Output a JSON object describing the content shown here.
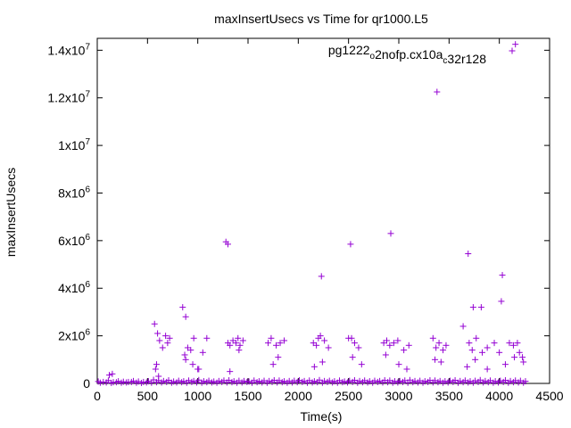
{
  "chart_data": {
    "type": "scatter",
    "title": "maxInsertUsecs vs Time for qr1000.L5",
    "xlabel": "Time(s)",
    "ylabel": "maxInsertUsecs",
    "xlim": [
      0,
      4500
    ],
    "ylim": [
      0,
      14500000
    ],
    "x_ticks": [
      0,
      500,
      1000,
      1500,
      2000,
      2500,
      3000,
      3500,
      4000,
      4500
    ],
    "x_tick_labels": [
      "0",
      "500",
      "1000",
      "1500",
      "2000",
      "2500",
      "3000",
      "3500",
      "4000",
      "4500"
    ],
    "y_ticks": [
      0,
      2000000,
      4000000,
      6000000,
      8000000,
      10000000,
      12000000,
      14000000
    ],
    "y_tick_labels": [
      {
        "base": "0",
        "exp": ""
      },
      {
        "base": "2x10",
        "exp": "6"
      },
      {
        "base": "4x10",
        "exp": "6"
      },
      {
        "base": "6x10",
        "exp": "6"
      },
      {
        "base": "8x10",
        "exp": "6"
      },
      {
        "base": "1x10",
        "exp": "7"
      },
      {
        "base": "1.2x10",
        "exp": "7"
      },
      {
        "base": "1.4x10",
        "exp": "7"
      }
    ],
    "grid": false,
    "legend_position": "top-right",
    "series": [
      {
        "name": "pg1222_o2nofp.cx10a_c32r128",
        "legend_parts": [
          {
            "text": "pg1222",
            "sub": false
          },
          {
            "text": "o",
            "sub": true
          },
          {
            "text": "2nofp.cx10a",
            "sub": false
          },
          {
            "text": "c",
            "sub": true
          },
          {
            "text": "32r128",
            "sub": false
          }
        ],
        "color": "#9400d3",
        "marker": "plus",
        "x": [
          10,
          60,
          110,
          160,
          210,
          260,
          310,
          360,
          410,
          460,
          510,
          560,
          610,
          660,
          710,
          760,
          810,
          860,
          910,
          960,
          1010,
          1060,
          1110,
          1160,
          1210,
          1260,
          1310,
          1360,
          1410,
          1460,
          1510,
          1560,
          1610,
          1660,
          1710,
          1760,
          1810,
          1860,
          1910,
          1960,
          2010,
          2060,
          2110,
          2160,
          2210,
          2260,
          2310,
          2360,
          2410,
          2460,
          2510,
          2560,
          2610,
          2660,
          2710,
          2760,
          2810,
          2860,
          2910,
          2960,
          3010,
          3060,
          3110,
          3160,
          3210,
          3260,
          3310,
          3360,
          3410,
          3460,
          3510,
          3560,
          3610,
          3660,
          3710,
          3760,
          3810,
          3860,
          3910,
          3960,
          4010,
          4060,
          4110,
          4160,
          4210,
          4260,
          30,
          90,
          140,
          190,
          240,
          290,
          340,
          390,
          440,
          490,
          540,
          590,
          640,
          690,
          740,
          790,
          840,
          890,
          940,
          990,
          1040,
          1090,
          1140,
          1190,
          1240,
          1290,
          1340,
          1390,
          1440,
          1490,
          1540,
          1590,
          1640,
          1690,
          1740,
          1790,
          1840,
          1890,
          1940,
          1990,
          2040,
          2090,
          2140,
          2190,
          2240,
          2290,
          2340,
          2390,
          2440,
          2490,
          2540,
          2590,
          2640,
          2690,
          2740,
          2790,
          2840,
          2890,
          2940,
          2990,
          3040,
          3090,
          3140,
          3190,
          3240,
          3290,
          3340,
          3390,
          3440,
          3490,
          3540,
          3590,
          3640,
          3690,
          3740,
          3790,
          3840,
          3890,
          3940,
          3990,
          4040,
          4090,
          4140,
          4190,
          4240,
          120,
          150,
          580,
          600,
          620,
          650,
          680,
          700,
          720,
          870,
          900,
          930,
          960,
          1000,
          1050,
          1090,
          1300,
          1320,
          1350,
          1380,
          1400,
          1420,
          1450,
          1700,
          1730,
          1780,
          1820,
          1860,
          2150,
          2180,
          2200,
          2220,
          2260,
          2300,
          2500,
          2530,
          2560,
          2600,
          2850,
          2880,
          2910,
          2950,
          2990,
          3050,
          3100,
          3340,
          3370,
          3400,
          3440,
          3470,
          3640,
          3700,
          3730,
          3770,
          3830,
          3880,
          3950,
          4000,
          4100,
          4140,
          4180,
          4200,
          4230,
          590,
          610,
          880,
          950,
          1010,
          1320,
          1410,
          1750,
          1800,
          2160,
          2240,
          2540,
          2630,
          2870,
          3000,
          3080,
          3360,
          3420,
          3680,
          3760,
          3880,
          4060,
          4150,
          4240,
          570,
          850,
          880,
          1280,
          1300,
          2230,
          2520,
          2920,
          3380,
          3690,
          3740,
          3820,
          4020,
          4030,
          4160
        ],
        "y": [
          80000,
          60000,
          120000,
          50000,
          90000,
          70000,
          60000,
          100000,
          80000,
          60000,
          90000,
          150000,
          120000,
          100000,
          130000,
          80000,
          110000,
          90000,
          120000,
          100000,
          140000,
          90000,
          110000,
          80000,
          100000,
          120000,
          130000,
          90000,
          110000,
          100000,
          80000,
          120000,
          90000,
          110000,
          100000,
          130000,
          120000,
          90000,
          100000,
          110000,
          130000,
          100000,
          120000,
          90000,
          140000,
          100000,
          110000,
          90000,
          120000,
          80000,
          110000,
          130000,
          100000,
          120000,
          90000,
          110000,
          100000,
          130000,
          120000,
          90000,
          100000,
          120000,
          140000,
          100000,
          110000,
          90000,
          130000,
          120000,
          100000,
          90000,
          110000,
          130000,
          100000,
          120000,
          90000,
          110000,
          140000,
          100000,
          120000,
          90000,
          110000,
          130000,
          100000,
          120000,
          110000,
          90000,
          30000,
          40000,
          20000,
          50000,
          30000,
          40000,
          60000,
          30000,
          20000,
          40000,
          30000,
          50000,
          40000,
          60000,
          30000,
          40000,
          50000,
          30000,
          60000,
          40000,
          30000,
          50000,
          40000,
          30000,
          60000,
          40000,
          50000,
          30000,
          40000,
          60000,
          30000,
          50000,
          40000,
          30000,
          60000,
          40000,
          50000,
          30000,
          40000,
          50000,
          60000,
          30000,
          40000,
          50000,
          30000,
          60000,
          40000,
          30000,
          50000,
          40000,
          60000,
          30000,
          50000,
          40000,
          30000,
          60000,
          40000,
          50000,
          30000,
          40000,
          60000,
          30000,
          50000,
          40000,
          30000,
          60000,
          40000,
          50000,
          30000,
          40000,
          60000,
          30000,
          50000,
          40000,
          30000,
          60000,
          40000,
          50000,
          30000,
          40000,
          60000,
          30000,
          50000,
          40000,
          30000,
          350000,
          400000,
          600000,
          2100000,
          1800000,
          1500000,
          2000000,
          1700000,
          1900000,
          1200000,
          1500000,
          1400000,
          1900000,
          600000,
          1300000,
          1900000,
          1700000,
          1600000,
          1800000,
          1700000,
          1900000,
          1600000,
          1800000,
          1700000,
          1900000,
          1600000,
          1700000,
          1800000,
          1700000,
          1600000,
          1900000,
          2000000,
          1800000,
          1500000,
          1900000,
          1900000,
          1700000,
          1500000,
          1700000,
          1800000,
          1600000,
          1700000,
          1800000,
          1400000,
          1600000,
          1900000,
          1500000,
          1700000,
          1400000,
          1600000,
          2400000,
          1700000,
          1400000,
          1900000,
          1300000,
          1500000,
          1700000,
          1300000,
          1700000,
          1600000,
          1700000,
          1300000,
          1100000,
          800000,
          300000,
          1000000,
          800000,
          600000,
          500000,
          1400000,
          800000,
          1100000,
          700000,
          900000,
          1100000,
          800000,
          1200000,
          800000,
          600000,
          1000000,
          900000,
          700000,
          1000000,
          600000,
          800000,
          1100000,
          900000,
          2500000,
          3200000,
          2800000,
          5950000,
          5850000,
          4500000,
          5850000,
          6300000,
          12250000,
          5450000,
          3200000,
          3200000,
          3450000,
          4550000,
          14250000
        ]
      }
    ]
  }
}
